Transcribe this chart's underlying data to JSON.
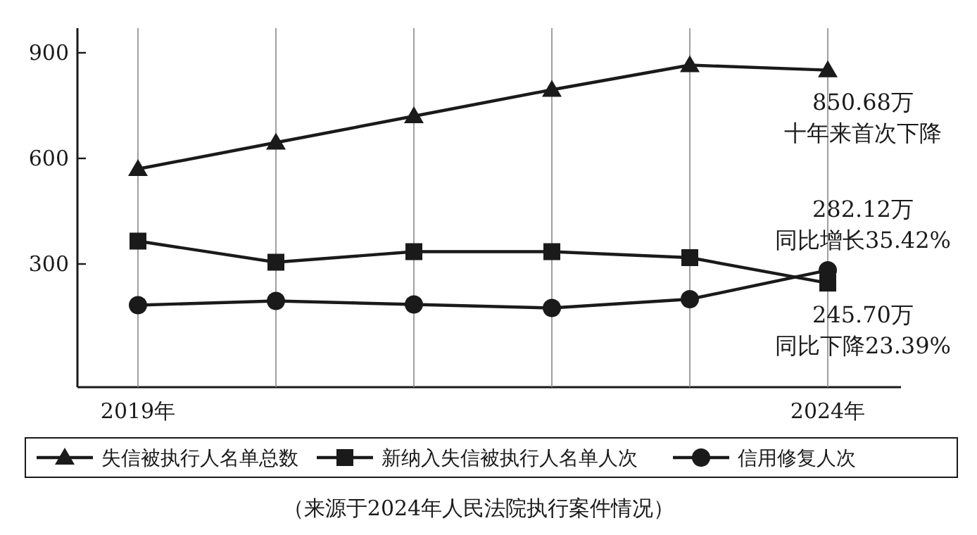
{
  "chart_data": {
    "type": "line",
    "categories": [
      "2019年",
      null,
      null,
      null,
      null,
      "2024年"
    ],
    "series": [
      {
        "name": "失信被执行人名单总数",
        "color": "#1a1a1a",
        "marker": "triangle",
        "values": [
          570,
          645,
          720,
          795,
          865,
          850.68
        ]
      },
      {
        "name": "新纳入失信被执行人名单人次",
        "color": "#1a1a1a",
        "marker": "square",
        "values": [
          365,
          305,
          335,
          335,
          318,
          245.7
        ]
      },
      {
        "name": "信用修复人次",
        "color": "#1a1a1a",
        "marker": "circle",
        "values": [
          183,
          195,
          185,
          175,
          200,
          282.12
        ]
      }
    ],
    "ylim": [
      -50,
      970
    ],
    "yticks": [
      300,
      600,
      900
    ],
    "grid": "x",
    "legend": "bottom",
    "line_style": "solid",
    "annotations": [
      {
        "text": "850.68万",
        "x": "2024年",
        "y": 850.68
      },
      {
        "text": "十年来首次下降",
        "x": "2024年",
        "y": 850.68
      },
      {
        "text": "282.12万",
        "x": "2024年",
        "y": 282.12
      },
      {
        "text": "同比增长35.42%",
        "x": "2024年",
        "y": 282.12
      },
      {
        "text": "245.70万",
        "x": "2024年",
        "y": 245.7
      },
      {
        "text": "同比下降23.39%",
        "x": "2024年",
        "y": 245.7
      },
      "（来源于2024年人民法院执行案件情况）"
    ]
  }
}
